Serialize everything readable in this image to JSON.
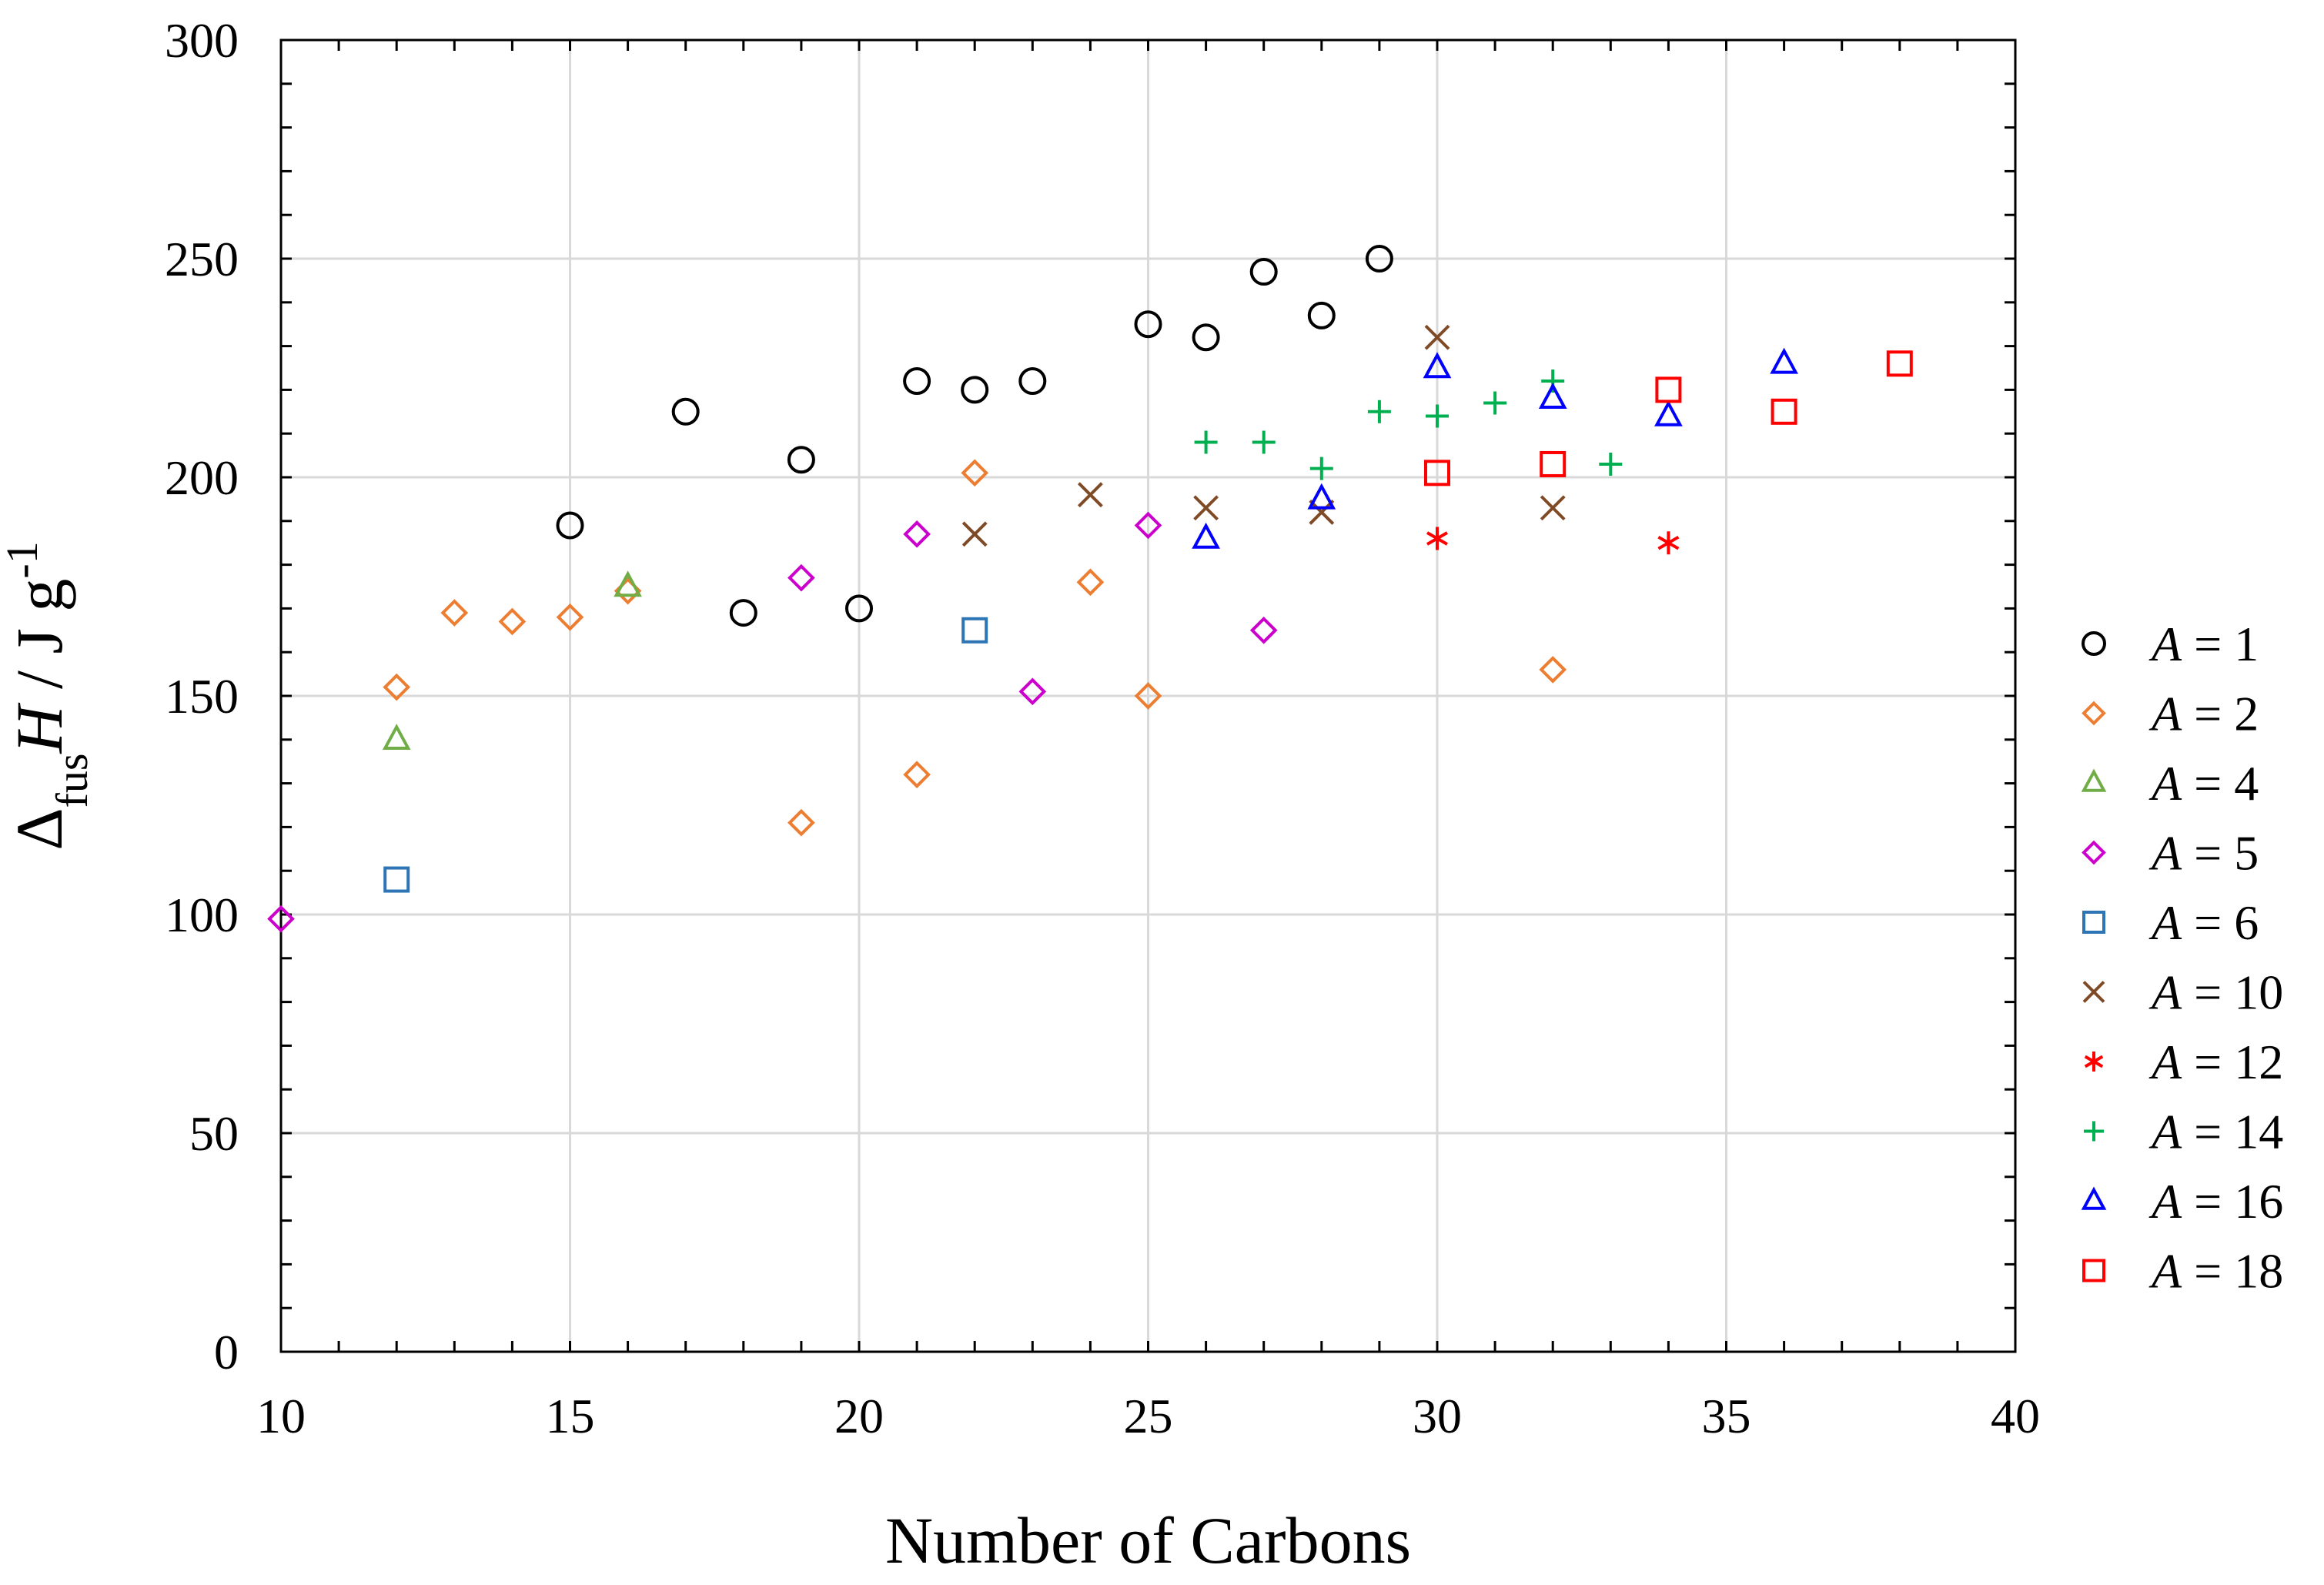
{
  "chart_data": {
    "type": "scatter",
    "title": "",
    "xlabel": "Number of Carbons",
    "ylabel": {
      "delta": "Δ",
      "sub": "fus",
      "H": "H",
      "unit_main": " / J g",
      "unit_sup": "-1"
    },
    "xlim": [
      10,
      40
    ],
    "ylim": [
      0,
      300
    ],
    "xticks": [
      10,
      15,
      20,
      25,
      30,
      35,
      40
    ],
    "yticks": [
      0,
      50,
      100,
      150,
      200,
      250,
      300
    ],
    "grid": true,
    "legend_position": "right",
    "series": [
      {
        "name": "A = 1",
        "label_var": "A",
        "label_val": "= 1",
        "marker": "circle",
        "color": "#000000",
        "points": [
          [
            15,
            189
          ],
          [
            17,
            215
          ],
          [
            18,
            169
          ],
          [
            19,
            204
          ],
          [
            20,
            170
          ],
          [
            21,
            222
          ],
          [
            22,
            220
          ],
          [
            23,
            222
          ],
          [
            25,
            235
          ],
          [
            26,
            232
          ],
          [
            27,
            247
          ],
          [
            28,
            237
          ],
          [
            29,
            250
          ]
        ]
      },
      {
        "name": "A = 2",
        "label_var": "A",
        "label_val": "= 2",
        "marker": "diamond",
        "color": "#ED7D31",
        "points": [
          [
            12,
            152
          ],
          [
            13,
            169
          ],
          [
            14,
            167
          ],
          [
            15,
            168
          ],
          [
            16,
            174
          ],
          [
            19,
            121
          ],
          [
            21,
            132
          ],
          [
            22,
            201
          ],
          [
            24,
            176
          ],
          [
            25,
            150
          ],
          [
            32,
            156
          ]
        ]
      },
      {
        "name": "A = 4",
        "label_var": "A",
        "label_val": "= 4",
        "marker": "triangle",
        "color": "#70AD47",
        "points": [
          [
            12,
            140
          ],
          [
            16,
            175
          ]
        ]
      },
      {
        "name": "A = 5",
        "label_var": "A",
        "label_val": "= 5",
        "marker": "diamond",
        "color": "#CC00CC",
        "points": [
          [
            10,
            99
          ],
          [
            19,
            177
          ],
          [
            21,
            187
          ],
          [
            23,
            151
          ],
          [
            25,
            189
          ],
          [
            27,
            165
          ]
        ]
      },
      {
        "name": "A = 6",
        "label_var": "A",
        "label_val": "= 6",
        "marker": "square",
        "color": "#2E75B6",
        "points": [
          [
            12,
            108
          ],
          [
            22,
            165
          ]
        ]
      },
      {
        "name": "A = 10",
        "label_var": "A",
        "label_val": "= 10",
        "marker": "x",
        "color": "#7F4A26",
        "points": [
          [
            22,
            187
          ],
          [
            24,
            196
          ],
          [
            26,
            193
          ],
          [
            28,
            192
          ],
          [
            30,
            232
          ],
          [
            32,
            193
          ]
        ]
      },
      {
        "name": "A = 12",
        "label_var": "A",
        "label_val": "= 12",
        "marker": "asterisk",
        "color": "#FF0000",
        "points": [
          [
            30,
            186
          ],
          [
            34,
            185
          ]
        ]
      },
      {
        "name": "A = 14",
        "label_var": "A",
        "label_val": "= 14",
        "marker": "plus",
        "color": "#00B050",
        "points": [
          [
            26,
            208
          ],
          [
            27,
            208
          ],
          [
            28,
            202
          ],
          [
            29,
            215
          ],
          [
            30,
            214
          ],
          [
            31,
            217
          ],
          [
            32,
            222
          ],
          [
            33,
            203
          ]
        ]
      },
      {
        "name": "A = 16",
        "label_var": "A",
        "label_val": "= 16",
        "marker": "triangle",
        "color": "#0000FF",
        "points": [
          [
            26,
            186
          ],
          [
            28,
            195
          ],
          [
            30,
            225
          ],
          [
            32,
            218
          ],
          [
            34,
            214
          ],
          [
            36,
            226
          ]
        ]
      },
      {
        "name": "A = 18",
        "label_var": "A",
        "label_val": "= 18",
        "marker": "square",
        "color": "#FF0000",
        "points": [
          [
            30,
            201
          ],
          [
            32,
            203
          ],
          [
            34,
            220
          ],
          [
            36,
            215
          ],
          [
            38,
            226
          ]
        ]
      }
    ]
  }
}
